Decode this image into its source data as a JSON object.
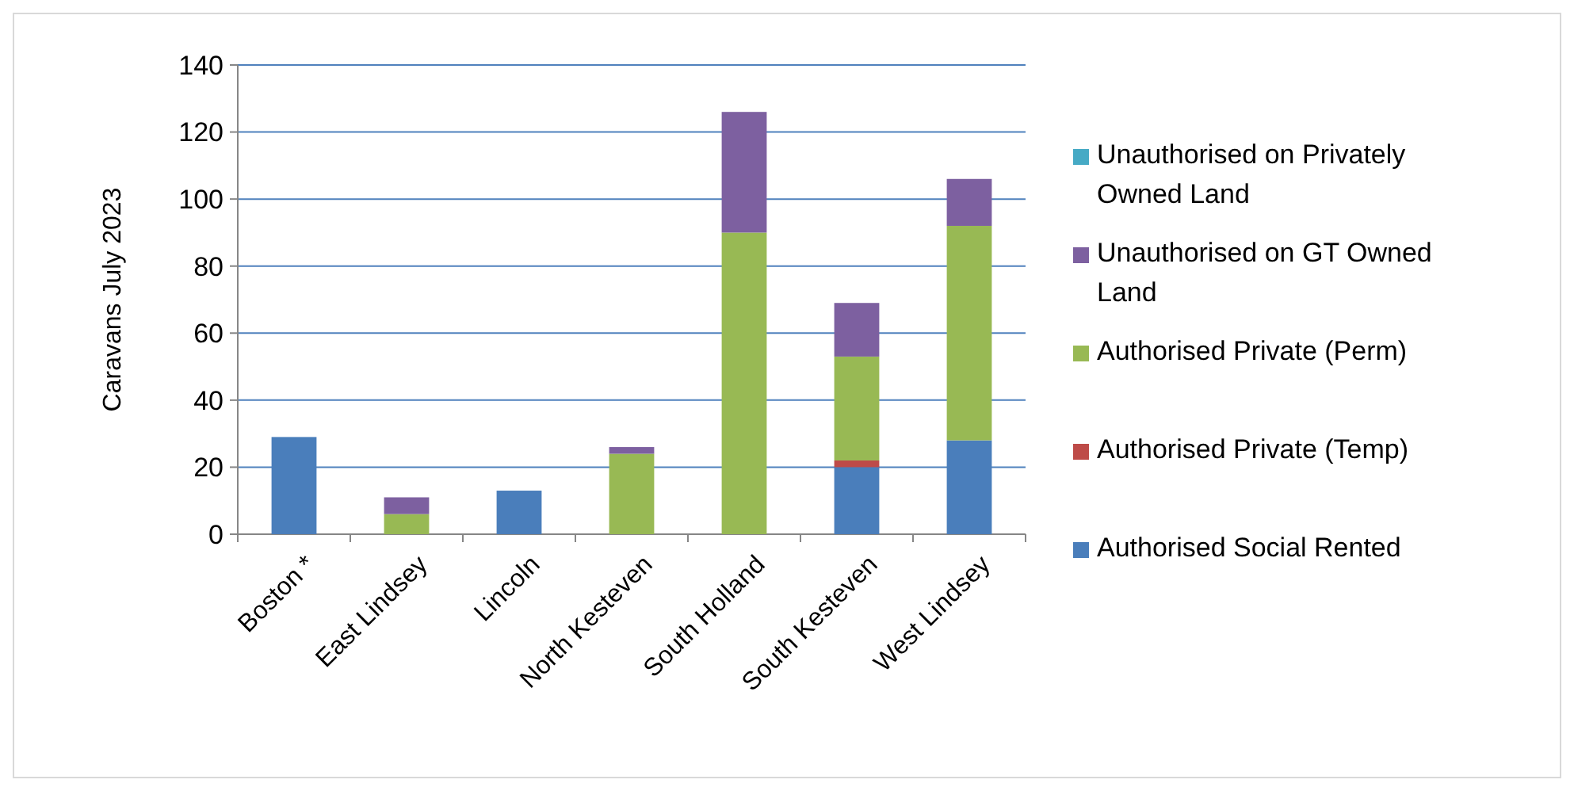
{
  "chart_data": {
    "type": "bar",
    "stacked": true,
    "ylabel": "Caravans July 2023",
    "categories": [
      "Boston *",
      "East Lindsey",
      "Lincoln",
      "North Kesteven",
      "South Holland",
      "South Kesteven",
      "West Lindsey"
    ],
    "series": [
      {
        "name": "Authorised Social Rented",
        "color": "#4a7ebb",
        "values": [
          29,
          0,
          13,
          0,
          0,
          20,
          28
        ]
      },
      {
        "name": "Authorised Private (Temp)",
        "color": "#be4b48",
        "values": [
          0,
          0,
          0,
          0,
          0,
          2,
          0
        ]
      },
      {
        "name": "Authorised Private (Perm)",
        "color": "#98b954",
        "values": [
          0,
          6,
          0,
          24,
          90,
          31,
          64
        ]
      },
      {
        "name": "Unauthorised on GT Owned Land",
        "color": "#7d60a0",
        "values": [
          0,
          5,
          0,
          2,
          36,
          16,
          14
        ]
      },
      {
        "name": "Unauthorised on Privately Owned Land",
        "color": "#46aac5",
        "values": [
          0,
          0,
          0,
          0,
          0,
          0,
          0
        ]
      }
    ],
    "ylim": [
      0,
      140
    ],
    "yticks": [
      0,
      20,
      40,
      60,
      80,
      100,
      120,
      140
    ],
    "grid": "y",
    "legend": "right"
  }
}
